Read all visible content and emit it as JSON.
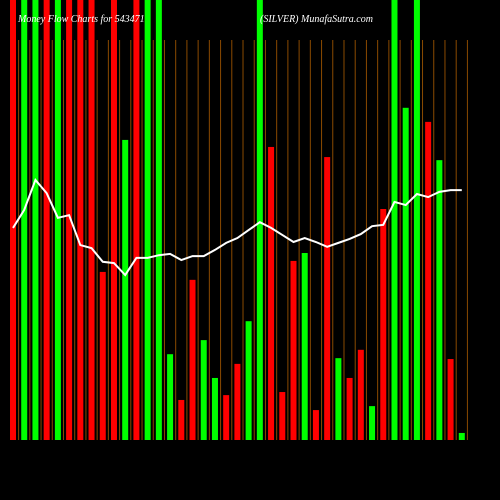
{
  "chart_data": {
    "type": "bar",
    "title": "Money Flow Charts for 543471",
    "subtitle": "(SILVER) MunafaSutra.com",
    "categories": [
      null,
      null,
      null,
      null,
      null,
      null,
      null,
      null,
      null,
      null,
      null,
      null,
      null,
      null,
      null,
      null,
      null,
      null,
      null,
      null,
      null,
      null,
      null,
      null,
      null,
      null,
      null,
      null,
      null,
      null,
      null,
      null,
      null,
      null,
      null,
      null,
      null,
      null,
      null,
      null,
      null
    ],
    "values": [
      100,
      100,
      100,
      100,
      100,
      100,
      100,
      100,
      38.2,
      100,
      68.2,
      100,
      100,
      100,
      19.5,
      9.1,
      36.4,
      22.7,
      14.1,
      10.2,
      17.3,
      27.0,
      100,
      66.6,
      10.9,
      40.7,
      42.5,
      6.8,
      64.3,
      18.6,
      14.1,
      20.5,
      7.7,
      52.5,
      100,
      75.5,
      100,
      72.3,
      63.6,
      18.4,
      1.6
    ],
    "colors": [
      "#ff0000",
      "#00ff00",
      "#00ff00",
      "#ff0000",
      "#00ff00",
      "#ff0000",
      "#ff0000",
      "#ff0000",
      "#ff0000",
      "#ff0000",
      "#00ff00",
      "#ff0000",
      "#00ff00",
      "#00ff00",
      "#00ff00",
      "#ff0000",
      "#ff0000",
      "#00ff00",
      "#00ff00",
      "#ff0000",
      "#ff0000",
      "#00ff00",
      "#00ff00",
      "#ff0000",
      "#ff0000",
      "#ff0000",
      "#00ff00",
      "#ff0000",
      "#ff0000",
      "#00ff00",
      "#ff0000",
      "#ff0000",
      "#00ff00",
      "#ff0000",
      "#00ff00",
      "#00ff00",
      "#00ff00",
      "#ff0000",
      "#00ff00",
      "#ff0000",
      "#00ff00"
    ],
    "line_values": [
      48.2,
      52.3,
      59.1,
      56.1,
      50.5,
      51.1,
      44.3,
      43.6,
      40.5,
      40.2,
      37.5,
      41.4,
      41.4,
      42.0,
      42.3,
      40.9,
      41.8,
      41.8,
      43.2,
      44.8,
      45.9,
      47.7,
      49.5,
      48.2,
      46.6,
      45.0,
      45.9,
      45.0,
      43.9,
      44.8,
      45.7,
      46.8,
      48.6,
      48.9,
      54.1,
      53.4,
      55.9,
      55.2,
      56.4,
      56.8,
      56.8
    ],
    "line_color": "#ffffff",
    "ylim": [
      0,
      100
    ]
  }
}
